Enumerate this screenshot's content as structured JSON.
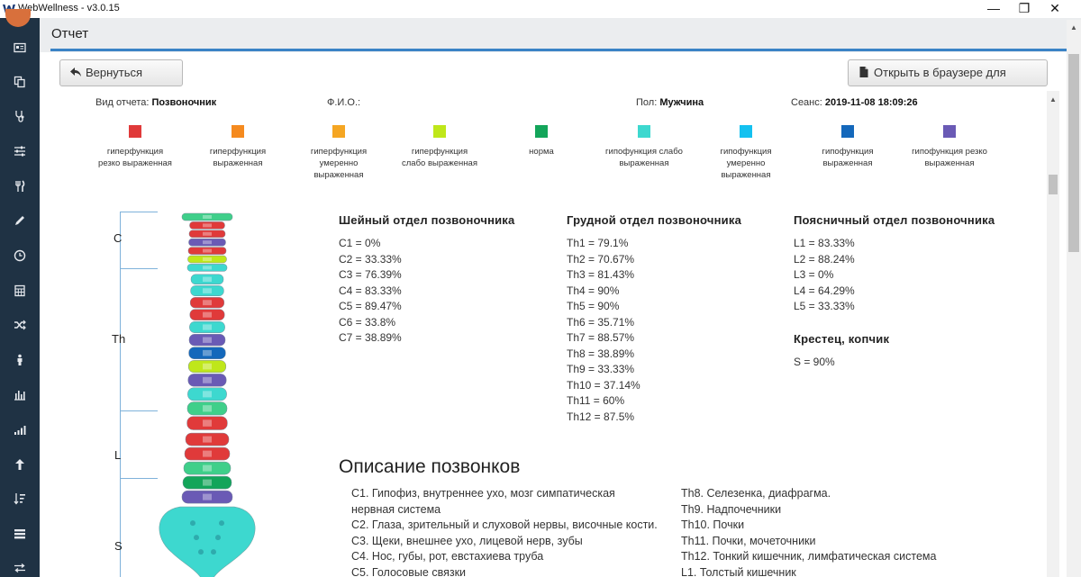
{
  "window": {
    "title": "WebWellness - v3.0.15",
    "minimize": "—",
    "restore": "❐",
    "close": "✕"
  },
  "header": {
    "title": "Отчет"
  },
  "toolbar": {
    "back_label": "Вернуться назад",
    "print_label": "Открыть в браузере для печати"
  },
  "meta": {
    "report_type_label": "Вид отчета:",
    "report_type_value": "Позвоночник",
    "name_label": "Ф.И.О.:",
    "name_value": "",
    "gender_label": "Пол:",
    "gender_value": "Мужчина",
    "session_label": "Сеанс:",
    "session_value": "2019-11-08 18:09:26"
  },
  "legend": [
    {
      "color": "#e03a3a",
      "line1": "гиперфункция",
      "line2": "резко выраженная",
      "line3": ""
    },
    {
      "color": "#f58a1f",
      "line1": "гиперфункция",
      "line2": "выраженная",
      "line3": ""
    },
    {
      "color": "#f5a623",
      "line1": "гиперфункция",
      "line2": "умеренно",
      "line3": "выраженная"
    },
    {
      "color": "#bfe71a",
      "line1": "гиперфункция",
      "line2": "слабо выраженная",
      "line3": ""
    },
    {
      "color": "#13a55a",
      "line1": "норма",
      "line2": "",
      "line3": ""
    },
    {
      "color": "#3dd8cf",
      "line1": "гипофункция слабо",
      "line2": "выраженная",
      "line3": ""
    },
    {
      "color": "#14c1f0",
      "line1": "гипофункция",
      "line2": "умеренно",
      "line3": "выраженная"
    },
    {
      "color": "#1468bb",
      "line1": "гипофункция",
      "line2": "выраженная",
      "line3": ""
    },
    {
      "color": "#6a5ab5",
      "line1": "гипофункция резко",
      "line2": "выраженная",
      "line3": ""
    }
  ],
  "spine_regions": {
    "c": "C",
    "th": "Th",
    "l": "L",
    "s": "S"
  },
  "cervical": {
    "title": "Шейный отдел позвоночника",
    "items": [
      "C1 = 0%",
      "C2 = 33.33%",
      "C3 = 76.39%",
      "C4 = 83.33%",
      "C5 = 89.47%",
      "C6 = 33.8%",
      "C7 = 38.89%"
    ]
  },
  "thoracic": {
    "title": "Грудной отдел позвоночника",
    "items": [
      "Th1 = 79.1%",
      "Th2 = 70.67%",
      "Th3 = 81.43%",
      "Th4 = 90%",
      "Th5 = 90%",
      "Th6 = 35.71%",
      "Th7 = 88.57%",
      "Th8 = 38.89%",
      "Th9 = 33.33%",
      "Th10 = 37.14%",
      "Th11 = 60%",
      "Th12 = 87.5%"
    ]
  },
  "lumbar": {
    "title": "Поясничный отдел позвоночника",
    "items": [
      "L1 = 83.33%",
      "L2 = 88.24%",
      "L3 = 0%",
      "L4 = 64.29%",
      "L5 = 33.33%"
    ]
  },
  "sacrum": {
    "title": "Крестец, копчик",
    "items": [
      "S = 90%"
    ]
  },
  "description": {
    "title": "Описание позвонков",
    "left": [
      "C1. Гипофиз, внутреннее ухо, мозг симпатическая",
      "нервная система",
      "C2. Глаза, зрительный и слуховой нервы, височные кости.",
      "C3. Щеки, внешнее ухо, лицевой нерв, зубы",
      "C4. Нос, губы, рот, евстахиева труба",
      "C5. Голосовые связки"
    ],
    "right": [
      "Th8. Селезенка, диафрагма.",
      "Th9. Надпочечники",
      "Th10. Почки",
      "Th11. Почки, мочеточники",
      "Th12. Тонкий кишечник, лимфатическая система",
      "L1. Толстый кишечник"
    ]
  },
  "spine_colors": {
    "cervical": [
      "#3fcf8a",
      "#e03a3a",
      "#e03a3a",
      "#6a5ab5",
      "#e03a3a",
      "#bfe71a",
      "#3dd8cf"
    ],
    "thoracic": [
      "#3dd8cf",
      "#3dd8cf",
      "#e03a3a",
      "#e03a3a",
      "#3dd8cf",
      "#6a5ab5",
      "#1468bb",
      "#bfe71a",
      "#6a5ab5",
      "#3dd8cf",
      "#3fcf8a",
      "#e03a3a"
    ],
    "lumbar": [
      "#e03a3a",
      "#e03a3a",
      "#3fcf8a",
      "#13a55a",
      "#6a5ab5"
    ],
    "sacrum": "#3dd8cf"
  }
}
